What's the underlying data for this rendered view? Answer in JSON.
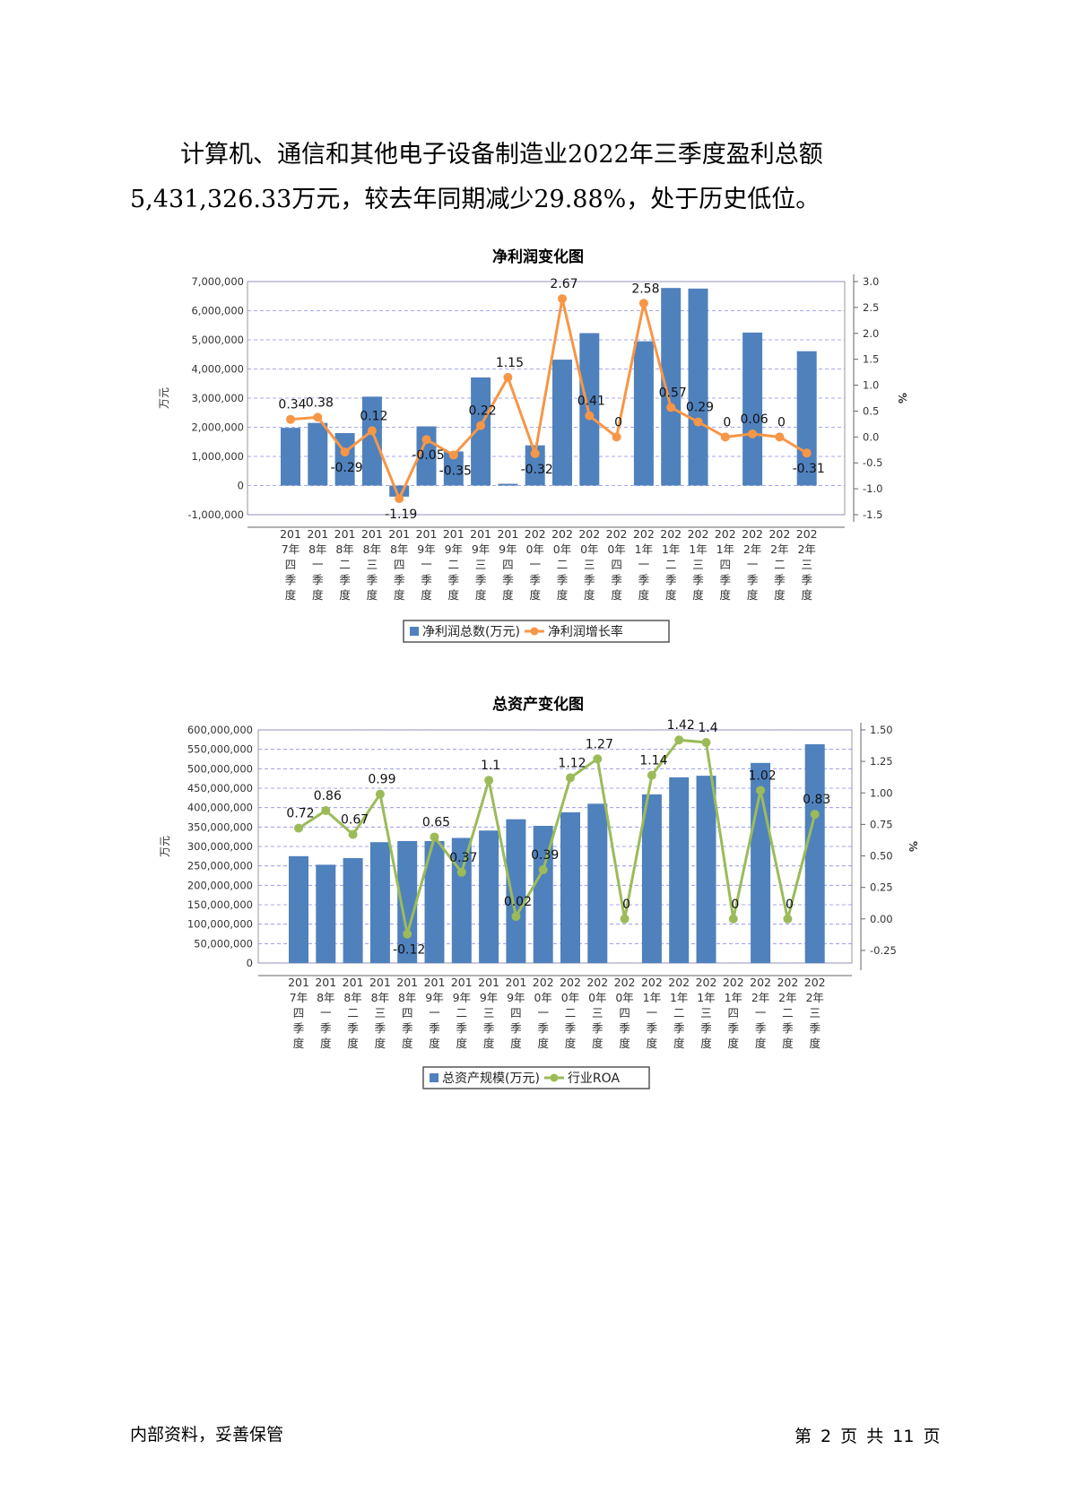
{
  "paragraph": {
    "line1": "计算机、通信和其他电子设备制造业2022年三季度盈利总额",
    "line2": "5,431,326.33万元，较去年同期减少29.88%，处于历史低位。"
  },
  "chart_data": [
    {
      "type": "bar+line",
      "title": "净利润变化图",
      "ylabel": "万元",
      "y2label": "%",
      "ylim": [
        -1000000,
        7000000
      ],
      "yticks": [
        -1000000,
        0,
        1000000,
        2000000,
        3000000,
        4000000,
        5000000,
        6000000,
        7000000
      ],
      "ytick_labels": [
        "-1,000,000",
        "0",
        "1,000,000",
        "2,000,000",
        "3,000,000",
        "4,000,000",
        "5,000,000",
        "6,000,000",
        "7,000,000"
      ],
      "y2lim": [
        -1.5,
        3.0
      ],
      "y2ticks": [
        -1.5,
        -1.0,
        -0.5,
        0.0,
        0.5,
        1.0,
        1.5,
        2.0,
        2.5,
        3.0
      ],
      "y2tick_labels": [
        "-1.5",
        "-1.0",
        "-0.5",
        "0.0",
        "0.5",
        "1.0",
        "1.5",
        "2.0",
        "2.5",
        "3.0"
      ],
      "categories": [
        "2017年四季度",
        "2018年一季度",
        "2018年二季度",
        "2018年三季度",
        "2018年四季度",
        "2019年一季度",
        "2019年二季度",
        "2019年三季度",
        "2019年四季度",
        "2020年一季度",
        "2020年二季度",
        "2020年三季度",
        "2020年四季度",
        "2021年一季度",
        "2021年二季度",
        "2021年三季度",
        "2021年四季度",
        "2022年一季度",
        "2022年二季度",
        "2022年三季度"
      ],
      "category_lines": [
        [
          "201",
          "7年",
          "四",
          "季",
          "度"
        ],
        [
          "201",
          "8年",
          "一",
          "季",
          "度"
        ],
        [
          "201",
          "8年",
          "二",
          "季",
          "度"
        ],
        [
          "201",
          "8年",
          "三",
          "季",
          "度"
        ],
        [
          "201",
          "8年",
          "四",
          "季",
          "度"
        ],
        [
          "201",
          "9年",
          "一",
          "季",
          "度"
        ],
        [
          "201",
          "9年",
          "二",
          "季",
          "度"
        ],
        [
          "201",
          "9年",
          "三",
          "季",
          "度"
        ],
        [
          "201",
          "9年",
          "四",
          "季",
          "度"
        ],
        [
          "202",
          "0年",
          "一",
          "季",
          "度"
        ],
        [
          "202",
          "0年",
          "二",
          "季",
          "度"
        ],
        [
          "202",
          "0年",
          "三",
          "季",
          "度"
        ],
        [
          "202",
          "0年",
          "四",
          "季",
          "度"
        ],
        [
          "202",
          "1年",
          "一",
          "季",
          "度"
        ],
        [
          "202",
          "1年",
          "二",
          "季",
          "度"
        ],
        [
          "202",
          "1年",
          "三",
          "季",
          "度"
        ],
        [
          "202",
          "1年",
          "四",
          "季",
          "度"
        ],
        [
          "202",
          "2年",
          "一",
          "季",
          "度"
        ],
        [
          "202",
          "2年",
          "二",
          "季",
          "度"
        ],
        [
          "202",
          "2年",
          "三",
          "季",
          "度"
        ]
      ],
      "series": [
        {
          "name": "净利润总数(万元)",
          "kind": "bar",
          "axis": "left",
          "color": "#4f81bd",
          "values": [
            1980000,
            2150000,
            1800000,
            3050000,
            -380000,
            2030000,
            1170000,
            3710000,
            60000,
            1380000,
            4320000,
            5230000,
            0,
            4950000,
            6780000,
            6760000,
            0,
            5250000,
            0,
            4610000
          ]
        },
        {
          "name": "净利润增长率",
          "kind": "line",
          "axis": "right",
          "color": "#f79646",
          "values": [
            0.34,
            0.38,
            -0.29,
            0.12,
            -1.19,
            -0.05,
            -0.35,
            0.22,
            1.15,
            -0.32,
            2.67,
            0.41,
            0,
            2.58,
            0.57,
            0.29,
            0,
            0.06,
            0,
            -0.31
          ],
          "labels": [
            "0.34",
            "0.38",
            "-0.29",
            "0.12",
            "-1.19",
            "-0.05",
            "-0.35",
            "0.22",
            "1.15",
            "-0.32",
            "2.67",
            "0.41",
            "0",
            "2.58",
            "0.57",
            "0.29",
            "0",
            "0.06",
            "0",
            "-0.31"
          ]
        }
      ],
      "legend": "bottom",
      "grid": true
    },
    {
      "type": "bar+line",
      "title": "总资产变化图",
      "ylabel": "万元",
      "y2label": "%",
      "ylim": [
        0,
        600000000
      ],
      "yticks": [
        0,
        50000000,
        100000000,
        150000000,
        200000000,
        250000000,
        300000000,
        350000000,
        400000000,
        450000000,
        500000000,
        550000000,
        600000000
      ],
      "ytick_labels": [
        "0",
        "50,000,000",
        "100,000,000",
        "150,000,000",
        "200,000,000",
        "250,000,000",
        "300,000,000",
        "350,000,000",
        "400,000,000",
        "450,000,000",
        "500,000,000",
        "550,000,000",
        "600,000,000"
      ],
      "y2lim": [
        -0.35,
        1.5
      ],
      "y2ticks": [
        -0.25,
        0.0,
        0.25,
        0.5,
        0.75,
        1.0,
        1.25,
        1.5
      ],
      "y2tick_labels": [
        "-0.25",
        "0.00",
        "0.25",
        "0.50",
        "0.75",
        "1.00",
        "1.25",
        "1.50"
      ],
      "categories": [
        "2017年四季度",
        "2018年一季度",
        "2018年二季度",
        "2018年三季度",
        "2018年四季度",
        "2019年一季度",
        "2019年二季度",
        "2019年三季度",
        "2019年四季度",
        "2020年一季度",
        "2020年二季度",
        "2020年三季度",
        "2020年四季度",
        "2021年一季度",
        "2021年二季度",
        "2021年三季度",
        "2021年四季度",
        "2022年一季度",
        "2022年二季度",
        "2022年三季度"
      ],
      "category_lines": [
        [
          "201",
          "7年",
          "四",
          "季",
          "度"
        ],
        [
          "201",
          "8年",
          "一",
          "季",
          "度"
        ],
        [
          "201",
          "8年",
          "二",
          "季",
          "度"
        ],
        [
          "201",
          "8年",
          "三",
          "季",
          "度"
        ],
        [
          "201",
          "8年",
          "四",
          "季",
          "度"
        ],
        [
          "201",
          "9年",
          "一",
          "季",
          "度"
        ],
        [
          "201",
          "9年",
          "二",
          "季",
          "度"
        ],
        [
          "201",
          "9年",
          "三",
          "季",
          "度"
        ],
        [
          "201",
          "9年",
          "四",
          "季",
          "度"
        ],
        [
          "202",
          "0年",
          "一",
          "季",
          "度"
        ],
        [
          "202",
          "0年",
          "二",
          "季",
          "度"
        ],
        [
          "202",
          "0年",
          "三",
          "季",
          "度"
        ],
        [
          "202",
          "0年",
          "四",
          "季",
          "度"
        ],
        [
          "202",
          "1年",
          "一",
          "季",
          "度"
        ],
        [
          "202",
          "1年",
          "二",
          "季",
          "度"
        ],
        [
          "202",
          "1年",
          "三",
          "季",
          "度"
        ],
        [
          "202",
          "1年",
          "四",
          "季",
          "度"
        ],
        [
          "202",
          "2年",
          "一",
          "季",
          "度"
        ],
        [
          "202",
          "2年",
          "二",
          "季",
          "度"
        ],
        [
          "202",
          "2年",
          "三",
          "季",
          "度"
        ]
      ],
      "series": [
        {
          "name": "总资产规模(万元)",
          "kind": "bar",
          "axis": "left",
          "color": "#4f81bd",
          "values": [
            275000000,
            253000000,
            270000000,
            311000000,
            314000000,
            314000000,
            322000000,
            341000000,
            370000000,
            353000000,
            388000000,
            410000000,
            0,
            434000000,
            478000000,
            482000000,
            0,
            515000000,
            0,
            563000000
          ]
        },
        {
          "name": "行业ROA",
          "kind": "line",
          "axis": "right",
          "color": "#9bbb59",
          "values": [
            0.72,
            0.86,
            0.67,
            0.99,
            -0.12,
            0.65,
            0.37,
            1.1,
            0.02,
            0.39,
            1.12,
            1.27,
            0,
            1.14,
            1.42,
            1.4,
            0,
            1.02,
            0,
            0.83
          ],
          "labels": [
            "0.72",
            "0.86",
            "0.67",
            "0.99",
            "-0.12",
            "0.65",
            "0.37",
            "1.1",
            "0.02",
            "0.39",
            "1.12",
            "1.27",
            "0",
            "1.14",
            "1.42",
            "1.4",
            "0",
            "1.02",
            "0",
            "0.83"
          ]
        }
      ],
      "legend": "bottom",
      "grid": true
    }
  ],
  "footer": {
    "left": "内部资料，妥善保管",
    "right": "第 2 页  共 11 页"
  }
}
